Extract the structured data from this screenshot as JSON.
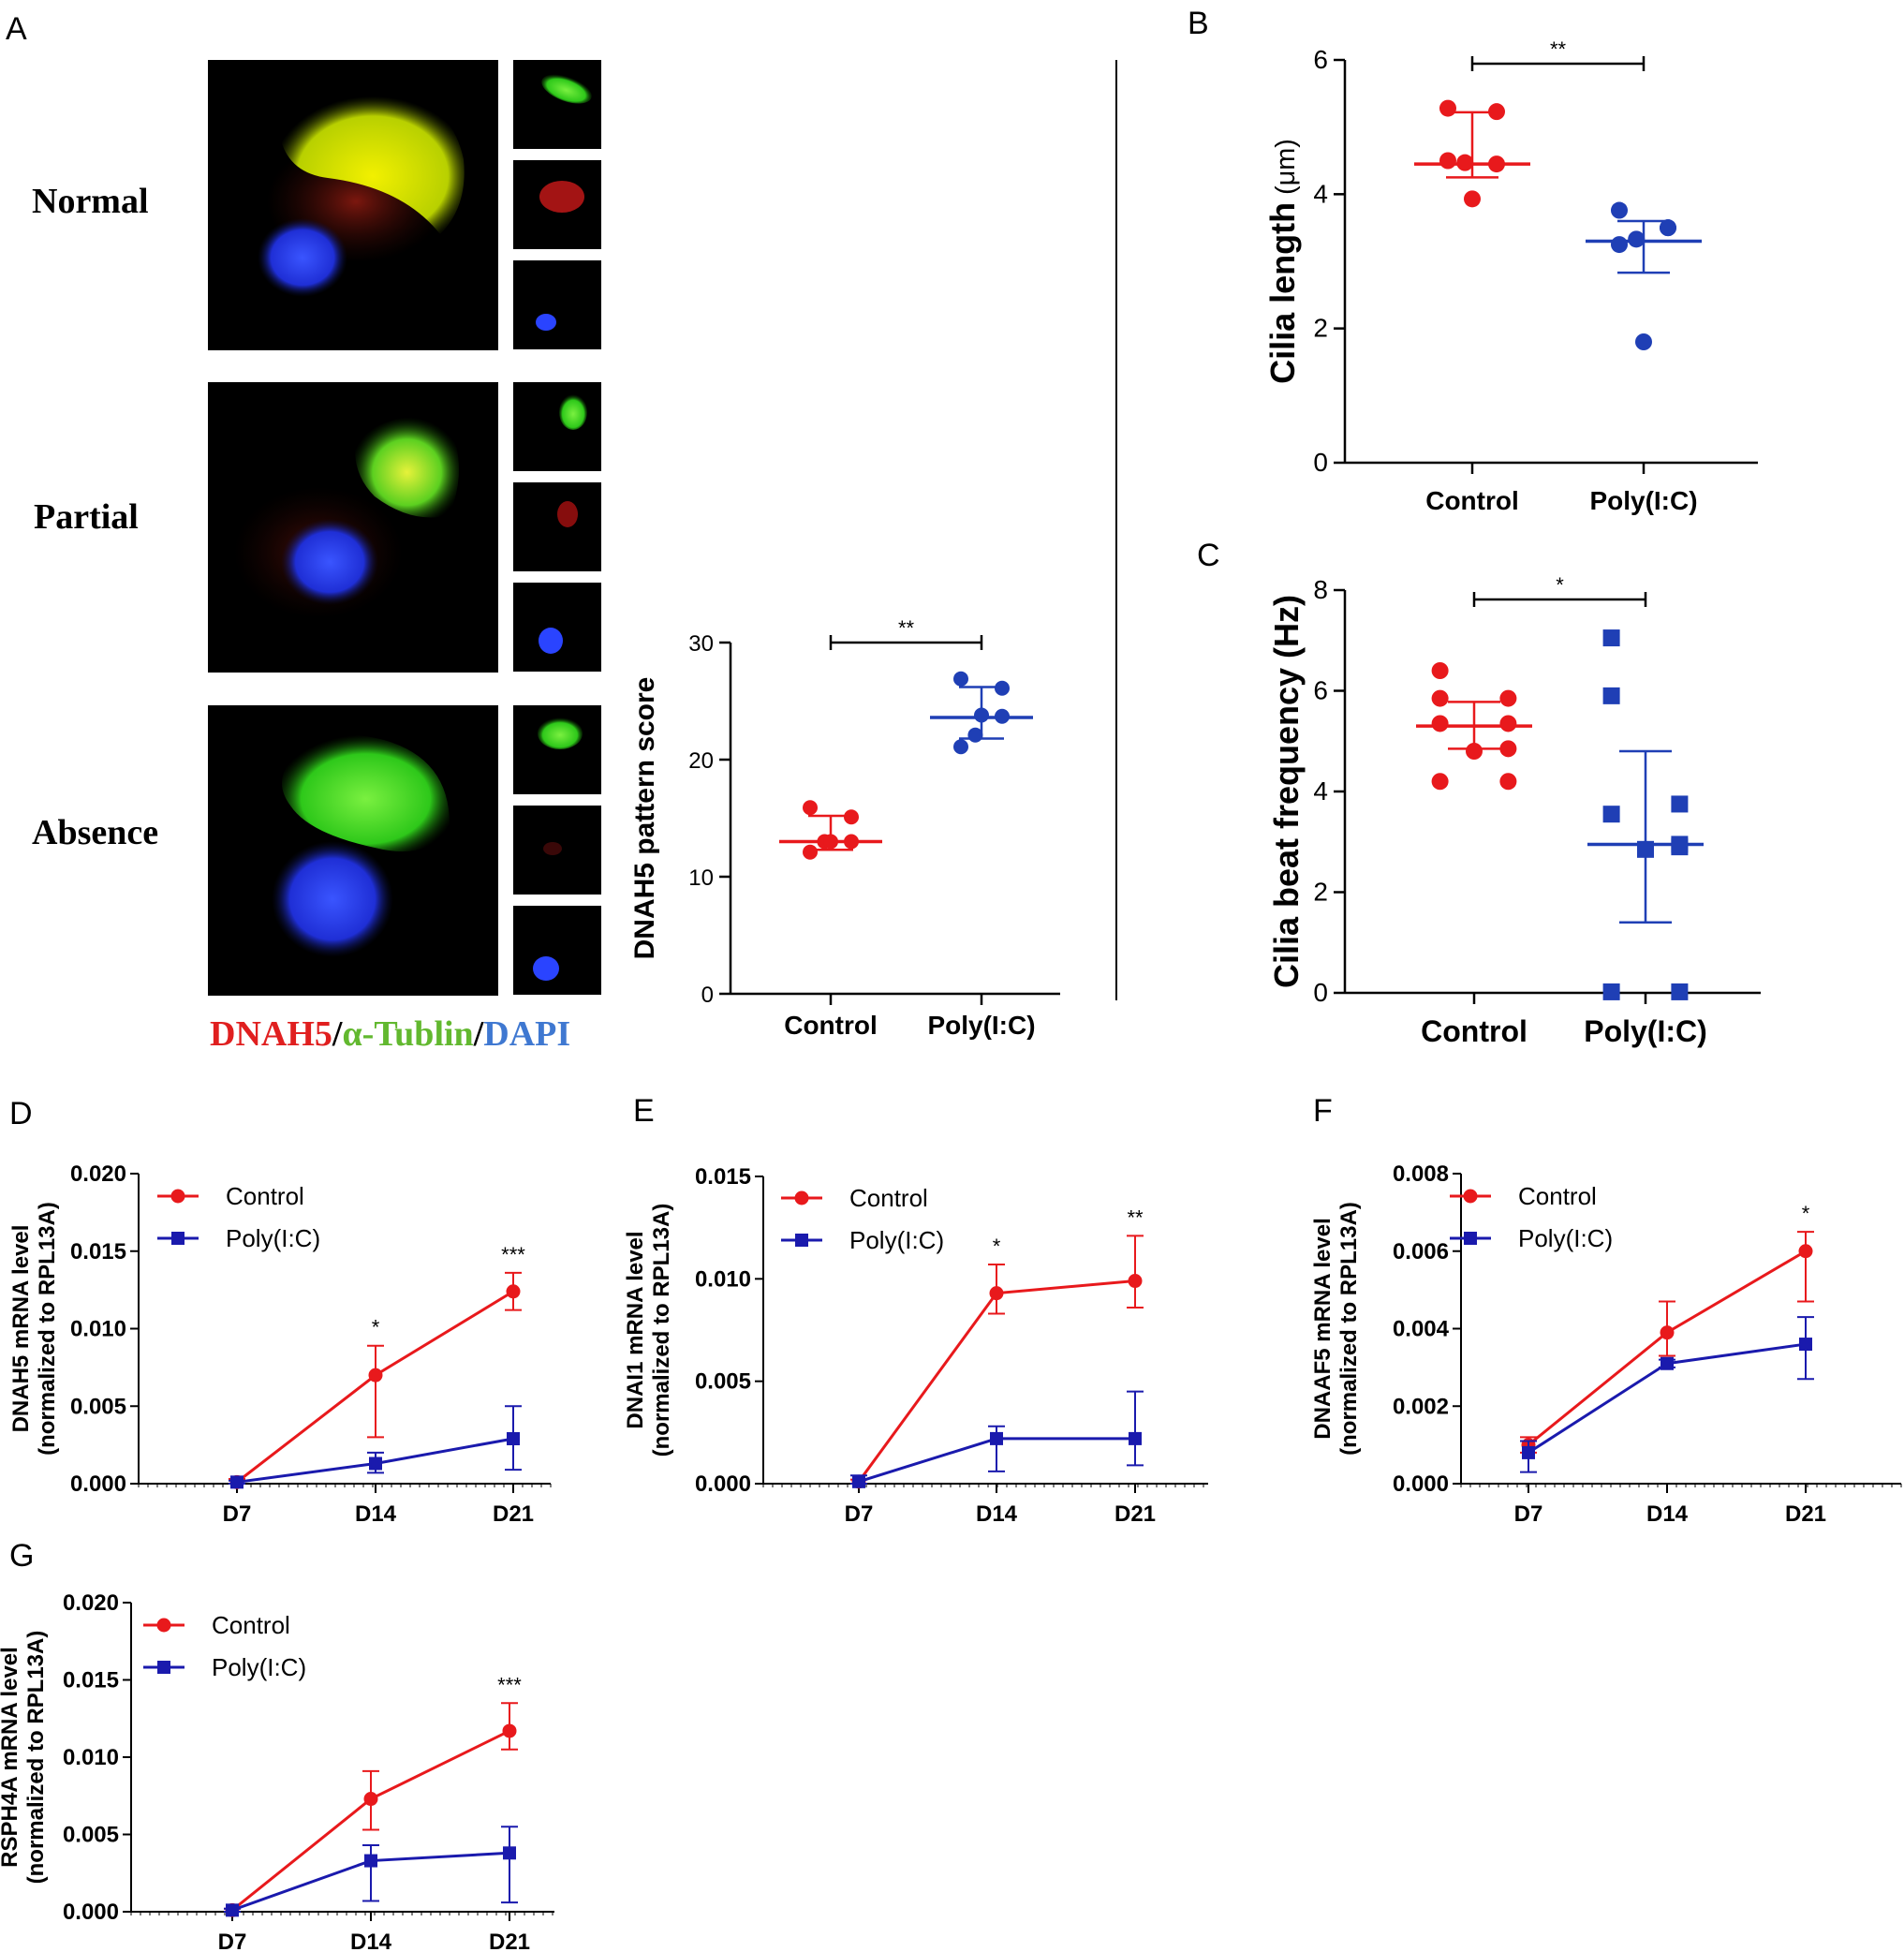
{
  "panels": {
    "A": {
      "letter": "A",
      "row_labels": [
        "Normal",
        "Partial",
        "Absence"
      ],
      "stain_legend": {
        "part1": "DNAH5",
        "sep1": "/",
        "part2": "α-Tublin",
        "sep2": "/",
        "part3": "DAPI",
        "colors": {
          "DNAH5": "#e01f1f",
          "tublin": "#62b82f",
          "DAPI": "#3f78d1"
        }
      }
    },
    "B": {
      "letter": "B"
    },
    "C": {
      "letter": "C"
    },
    "D": {
      "letter": "D"
    },
    "E": {
      "letter": "E"
    },
    "F": {
      "letter": "F"
    },
    "G": {
      "letter": "G"
    }
  },
  "colors": {
    "control": "#e8191c",
    "poly": "#1a1aad",
    "poly_dot": "#1f3fb5"
  },
  "chart_data": [
    {
      "id": "A-score",
      "type": "scatter",
      "ylabel": "DNAH5 pattern score",
      "categories": [
        "Control",
        "Poly(I:C)"
      ],
      "ylim": [
        0,
        30
      ],
      "yticks": [
        0,
        10,
        20,
        30
      ],
      "series": [
        {
          "name": "Control",
          "values": [
            15.9,
            15.1,
            12.1,
            13.0,
            13.0,
            13.0
          ],
          "mean": 13.0,
          "err_low": 12.3,
          "err_high": 15.2,
          "marker": "circle"
        },
        {
          "name": "Poly(I:C)",
          "values": [
            26.9,
            26.1,
            21.1,
            23.7,
            22.1,
            23.8
          ],
          "mean": 23.6,
          "err_low": 21.8,
          "err_high": 26.2,
          "marker": "circle"
        }
      ],
      "significance": "**"
    },
    {
      "id": "B",
      "type": "scatter",
      "ylabel": "Cilia length",
      "ylabel_unit": "(μm)",
      "categories": [
        "Control",
        "Poly(I:C)"
      ],
      "ylim": [
        0,
        6
      ],
      "yticks": [
        0,
        2,
        4,
        6
      ],
      "series": [
        {
          "name": "Control",
          "values": [
            5.28,
            5.23,
            4.5,
            4.45,
            4.47,
            3.93
          ],
          "mean": 4.45,
          "err_low": 4.25,
          "err_high": 5.22,
          "marker": "circle"
        },
        {
          "name": "Poly(I:C)",
          "values": [
            3.76,
            3.5,
            3.25,
            3.5,
            3.33,
            1.8
          ],
          "mean": 3.3,
          "err_low": 2.83,
          "err_high": 3.6,
          "marker": "circle"
        }
      ],
      "significance": "**"
    },
    {
      "id": "C",
      "type": "scatter",
      "ylabel": "Cilia beat frequency (Hz)",
      "categories": [
        "Control",
        "Poly(I:C)"
      ],
      "ylim": [
        0,
        8
      ],
      "yticks": [
        0,
        2,
        4,
        6,
        8
      ],
      "series": [
        {
          "name": "Control",
          "values": [
            6.4,
            5.85,
            5.85,
            5.35,
            5.35,
            4.8,
            4.85,
            4.2,
            4.2
          ],
          "mean": 5.3,
          "err_low": 4.85,
          "err_high": 5.78,
          "marker": "circle"
        },
        {
          "name": "Poly(I:C)",
          "values": [
            7.05,
            5.9,
            3.75,
            3.55,
            2.9,
            2.85,
            2.95,
            0.02,
            0.02
          ],
          "mean": 2.95,
          "err_low": 1.4,
          "err_high": 4.8,
          "marker": "square"
        }
      ],
      "significance": "*"
    },
    {
      "id": "D",
      "type": "line",
      "ylabel": "DNAH5 mRNA level",
      "ylabel2": "(normalized to RPL13A)",
      "x": [
        "D7",
        "D14",
        "D21"
      ],
      "ylim": [
        0,
        0.02
      ],
      "yticks": [
        "0.000",
        "0.005",
        "0.010",
        "0.015",
        "0.020"
      ],
      "series": [
        {
          "name": "Control",
          "values": [
            0.0001,
            0.007,
            0.0124
          ],
          "err_up": [
            0.0002,
            0.0019,
            0.0012
          ],
          "err_down": [
            0.0001,
            0.004,
            0.0012
          ],
          "marker": "circle"
        },
        {
          "name": "Poly(I:C)",
          "values": [
            0.0001,
            0.0013,
            0.0029
          ],
          "err_up": [
            0.0001,
            0.0007,
            0.0021
          ],
          "err_down": [
            0.0001,
            0.0006,
            0.002
          ],
          "marker": "square"
        }
      ],
      "sig": [
        "",
        "*",
        "***"
      ]
    },
    {
      "id": "E",
      "type": "line",
      "ylabel": "DNAI1 mRNA level",
      "ylabel2": "(normalized to RPL13A)",
      "x": [
        "D7",
        "D14",
        "D21"
      ],
      "ylim": [
        0,
        0.015
      ],
      "yticks": [
        "0.000",
        "0.005",
        "0.010",
        "0.015"
      ],
      "series": [
        {
          "name": "Control",
          "values": [
            0.0001,
            0.0093,
            0.0099
          ],
          "err_up": [
            0.0001,
            0.0014,
            0.0022
          ],
          "err_down": [
            0.0001,
            0.001,
            0.0013
          ],
          "marker": "circle"
        },
        {
          "name": "Poly(I:C)",
          "values": [
            0.0001,
            0.0022,
            0.0022
          ],
          "err_up": [
            0.0003,
            0.0006,
            0.0023
          ],
          "err_down": [
            0.0001,
            0.0016,
            0.0013
          ],
          "marker": "square"
        }
      ],
      "sig": [
        "",
        "*",
        "**"
      ]
    },
    {
      "id": "F",
      "type": "line",
      "ylabel": "DNAAF5 mRNA level",
      "ylabel2": "(normalized to RPL13A)",
      "x": [
        "D7",
        "D14",
        "D21"
      ],
      "ylim": [
        0,
        0.008
      ],
      "yticks": [
        "0.000",
        "0.002",
        "0.004",
        "0.006",
        "0.008"
      ],
      "series": [
        {
          "name": "Control",
          "values": [
            0.001,
            0.0039,
            0.006
          ],
          "err_up": [
            0.0002,
            0.0008,
            0.0005
          ],
          "err_down": [
            0.0002,
            0.0006,
            0.0013
          ],
          "marker": "circle"
        },
        {
          "name": "Poly(I:C)",
          "values": [
            0.0008,
            0.0031,
            0.0036
          ],
          "err_up": [
            0.0003,
            0.0001,
            0.0007
          ],
          "err_down": [
            0.0005,
            0.0001,
            0.0009
          ],
          "marker": "square"
        }
      ],
      "sig": [
        "",
        "",
        "*"
      ]
    },
    {
      "id": "G",
      "type": "line",
      "ylabel": "RSPH4A mRNA level",
      "ylabel2": "(normalized to RPL13A)",
      "x": [
        "D7",
        "D14",
        "D21"
      ],
      "ylim": [
        0,
        0.02
      ],
      "yticks": [
        "0.000",
        "0.005",
        "0.010",
        "0.015",
        "0.020"
      ],
      "series": [
        {
          "name": "Control",
          "values": [
            0.0001,
            0.0073,
            0.0117
          ],
          "err_up": [
            0.0001,
            0.0018,
            0.0018
          ],
          "err_down": [
            0.0001,
            0.002,
            0.0012
          ],
          "marker": "circle"
        },
        {
          "name": "Poly(I:C)",
          "values": [
            0.0001,
            0.0033,
            0.0038
          ],
          "err_up": [
            0.0001,
            0.001,
            0.0017
          ],
          "err_down": [
            0.0001,
            0.0026,
            0.0032
          ],
          "marker": "square"
        }
      ],
      "sig": [
        "",
        "",
        "***"
      ]
    }
  ]
}
